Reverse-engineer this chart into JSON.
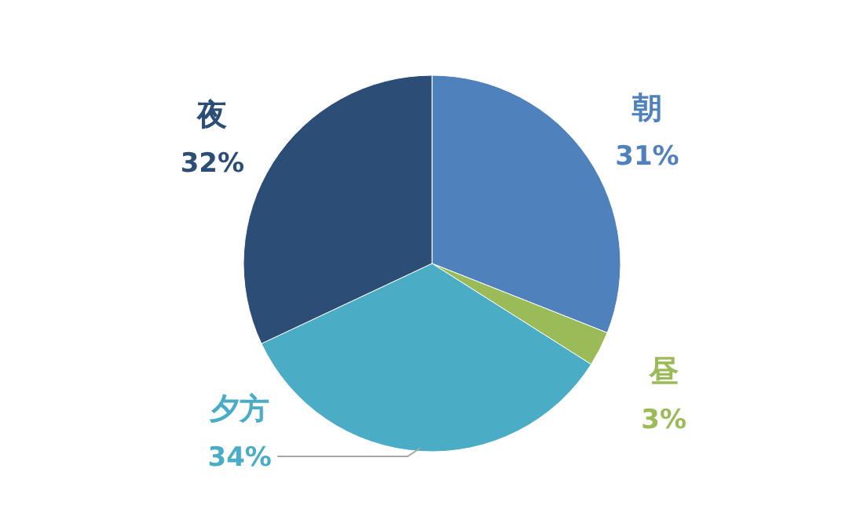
{
  "chart_data": {
    "type": "pie",
    "categories": [
      "朝",
      "昼",
      "夕方",
      "夜"
    ],
    "values": [
      31,
      3,
      34,
      32
    ],
    "colors": [
      "#4f81bd",
      "#9bbb59",
      "#4bacc6",
      "#2c4d75"
    ],
    "value_labels": [
      "31%",
      "3%",
      "34%",
      "32%"
    ]
  }
}
